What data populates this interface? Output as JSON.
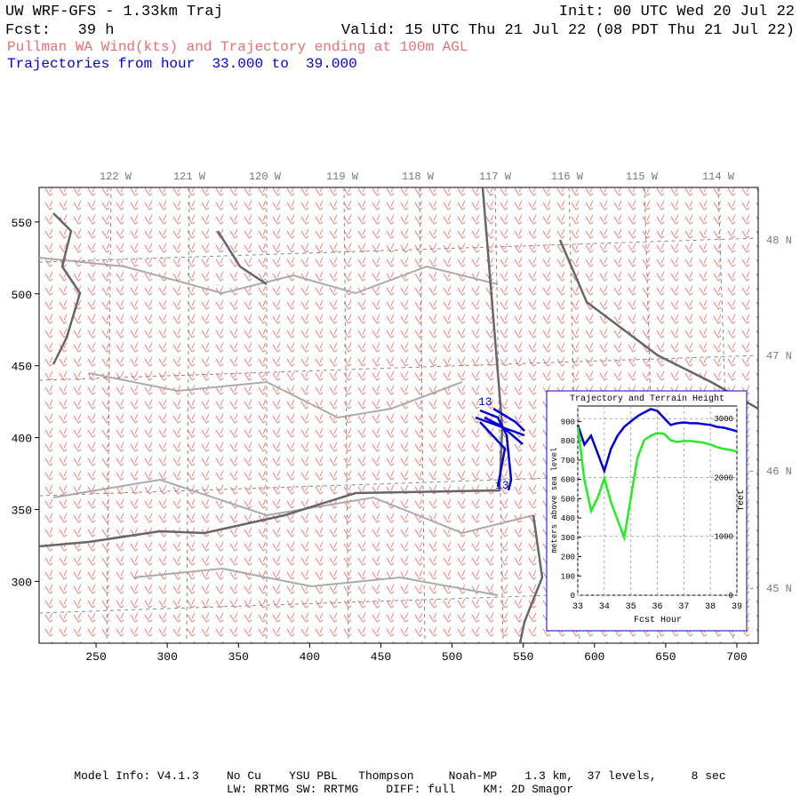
{
  "header": {
    "title": "UW WRF-GFS - 1.33km Traj",
    "init": "Init: 00 UTC Wed 20 Jul 22",
    "fcst": "Fcst:   39 h",
    "valid": "Valid: 15 UTC Thu 21 Jul 22 (08 PDT Thu 21 Jul 22)",
    "subtitle": "Pullman WA Wind(kts) and Trajectory ending at 100m AGL",
    "trajectories": "Trajectories from hour  33.000 to  39.000"
  },
  "map": {
    "xlim": [
      210,
      715
    ],
    "ylim": [
      257,
      574
    ],
    "xticks": [
      250,
      300,
      350,
      400,
      450,
      500,
      550,
      600,
      650,
      700
    ],
    "yticks": [
      300,
      350,
      400,
      450,
      500,
      550
    ],
    "lon_labels": [
      "122 W",
      "121 W",
      "120 W",
      "119 W",
      "118 W",
      "117 W",
      "116 W",
      "115 W",
      "114 W"
    ],
    "lat_labels": [
      "48 N",
      "47 N",
      "46 N",
      "45 N"
    ],
    "traj_labels": [
      "13",
      "13"
    ]
  },
  "chart_data": {
    "type": "line",
    "title": "Trajectory and Terrain Height",
    "xlabel": "Fcst Hour",
    "ylabel": "meters above sea level",
    "y2label": "feet",
    "x": [
      33,
      33.25,
      33.5,
      33.75,
      34,
      34.25,
      34.5,
      34.75,
      35,
      35.25,
      35.5,
      35.75,
      36,
      36.25,
      36.5,
      36.75,
      37,
      37.25,
      37.5,
      37.75,
      38,
      38.25,
      38.5,
      38.75,
      39
    ],
    "xlim": [
      33,
      39
    ],
    "xticks": [
      33,
      34,
      35,
      36,
      37,
      38,
      39
    ],
    "ylim": [
      0,
      980
    ],
    "yticks": [
      0,
      100,
      200,
      300,
      400,
      500,
      600,
      700,
      800,
      900
    ],
    "y2lim": [
      0,
      3215
    ],
    "y2ticks": [
      0,
      1000,
      2000,
      3000
    ],
    "grid": true,
    "series": [
      {
        "color": "#0000dd",
        "values": [
          882,
          780,
          826,
          735,
          643,
          758,
          826,
          872,
          900,
          927,
          946,
          964,
          955,
          918,
          882,
          891,
          895,
          891,
          891,
          886,
          882,
          872,
          868,
          859,
          849
        ]
      },
      {
        "color": "#22ee22",
        "values": [
          872,
          597,
          436,
          505,
          606,
          482,
          390,
          298,
          505,
          712,
          803,
          826,
          840,
          836,
          803,
          794,
          799,
          799,
          794,
          790,
          780,
          767,
          758,
          753,
          744
        ]
      }
    ]
  },
  "footer": {
    "line1": "Model Info: V4.1.3    No Cu    YSU PBL   Thompson     Noah-MP    1.3 km,  37 levels,     8 sec",
    "line2": "LW: RRTMG SW: RRTMG    DIFF: full    KM: 2D Smagor"
  }
}
